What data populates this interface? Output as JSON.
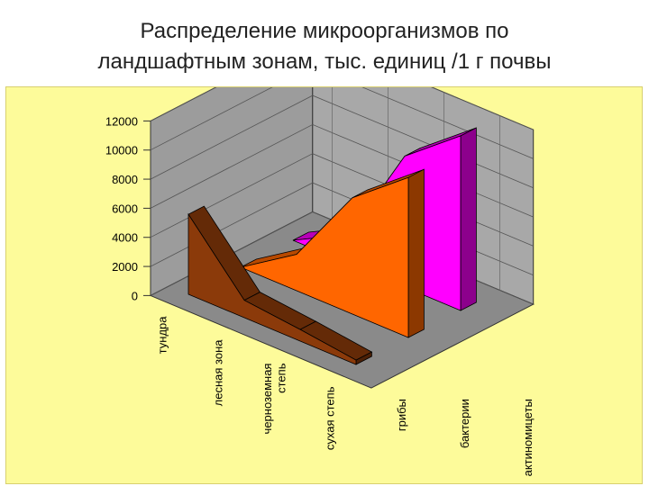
{
  "slide": {
    "title_line1": "Распределение микроорганизмов по",
    "title_line2": "ландшафтным зонам, тыс. единиц /1 г почвы"
  },
  "colors": {
    "panel_background": "#fdfb9a",
    "wall": "#a8a8a8",
    "floor": "#8a8a8a",
    "griby": "#8b3a0a",
    "bakterii": "#ff6600",
    "aktinomitsety": "#ff00ff"
  },
  "chart_data": {
    "type": "area",
    "style": "3d-area",
    "categories": [
      "тундра",
      "лесная зона",
      "черноземная степь",
      "сухая степь"
    ],
    "series": [
      {
        "name": "грибы",
        "values": [
          5500,
          1200,
          800,
          300
        ]
      },
      {
        "name": "бактерии",
        "values": [
          0,
          2500,
          8000,
          11000
        ]
      },
      {
        "name": "актиномицеты",
        "values": [
          0,
          2000,
          9000,
          12000
        ]
      }
    ],
    "ylim": [
      0,
      12000
    ],
    "yticks": [
      "0",
      "2000",
      "4000",
      "6000",
      "8000",
      "10000",
      "12000"
    ],
    "grid": true,
    "legend": "none",
    "title": "",
    "xlabel": "",
    "ylabel": ""
  }
}
